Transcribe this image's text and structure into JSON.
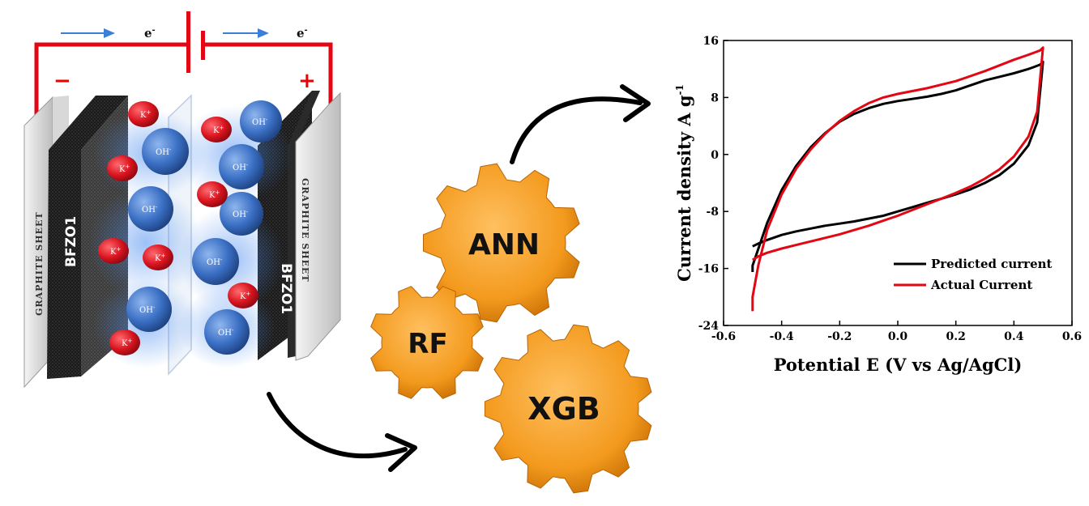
{
  "battery": {
    "electron_left": "e",
    "electron_right": "e",
    "electron_sup": "-",
    "negative_sign": "−",
    "positive_sign": "+",
    "left_sheet": "GRAPHITE SHEET",
    "right_sheet": "GRAPHITE SHEET",
    "left_electrode": "BFZO1",
    "right_electrode": "BFZO1",
    "k_ion": "K",
    "k_sup": "+",
    "oh_ion": "OH",
    "oh_sup": "-"
  },
  "models": {
    "gear_1": "ANN",
    "gear_2": "RF",
    "gear_3": "XGB"
  },
  "colors": {
    "wire": "#e30613",
    "ion_k": "#d9141f",
    "ion_oh": "#3a6fc4",
    "gear": "#f39a1e",
    "electrode": "#1a1a1a",
    "predicted": "#000000",
    "actual": "#e30613"
  },
  "chart_data": {
    "type": "line",
    "xlabel": "Potential E (V vs Ag/AgCl)",
    "ylabel_main": "Current density A g",
    "ylabel_sup": "-1",
    "xlim": [
      -0.6,
      0.6
    ],
    "ylim": [
      -24,
      16
    ],
    "x_ticks": [
      "-0.6",
      "-0.4",
      "-0.2",
      "0.0",
      "0.2",
      "0.4",
      "0.6"
    ],
    "y_ticks": [
      "16",
      "8",
      "0",
      "-8",
      "-16",
      "-24"
    ],
    "legend_position": "bottom-right",
    "series": [
      {
        "name": "Predicted current",
        "color": "#000000",
        "x": [
          -0.5,
          -0.48,
          -0.45,
          -0.4,
          -0.35,
          -0.3,
          -0.25,
          -0.2,
          -0.15,
          -0.1,
          -0.05,
          0.0,
          0.05,
          0.1,
          0.15,
          0.2,
          0.25,
          0.3,
          0.35,
          0.4,
          0.45,
          0.48,
          0.5,
          0.5,
          0.49,
          0.47,
          0.45,
          0.4,
          0.35,
          0.3,
          0.25,
          0.2,
          0.15,
          0.1,
          0.05,
          0.0,
          -0.05,
          -0.1,
          -0.15,
          -0.2,
          -0.25,
          -0.3,
          -0.35,
          -0.4,
          -0.45,
          -0.48,
          -0.5,
          -0.5
        ],
        "y": [
          -12.9,
          -12.5,
          -12.0,
          -11.3,
          -10.8,
          -10.4,
          -10.0,
          -9.7,
          -9.4,
          -9.0,
          -8.6,
          -8.0,
          -7.4,
          -6.8,
          -6.2,
          -5.6,
          -4.9,
          -4.0,
          -2.9,
          -1.3,
          1.3,
          4.5,
          13.0,
          13.0,
          12.6,
          12.3,
          12.0,
          11.4,
          10.9,
          10.4,
          9.7,
          9.0,
          8.5,
          8.1,
          7.8,
          7.5,
          7.1,
          6.5,
          5.7,
          4.6,
          3.0,
          1.0,
          -1.6,
          -5.0,
          -9.6,
          -13.2,
          -15.6,
          -16.5
        ]
      },
      {
        "name": "Actual Current",
        "color": "#e30613",
        "x": [
          -0.5,
          -0.48,
          -0.45,
          -0.4,
          -0.35,
          -0.3,
          -0.25,
          -0.2,
          -0.15,
          -0.1,
          -0.05,
          0.0,
          0.05,
          0.1,
          0.15,
          0.2,
          0.25,
          0.3,
          0.35,
          0.4,
          0.45,
          0.48,
          0.5,
          0.5,
          0.49,
          0.47,
          0.45,
          0.4,
          0.35,
          0.3,
          0.25,
          0.2,
          0.15,
          0.1,
          0.05,
          0.0,
          -0.05,
          -0.1,
          -0.15,
          -0.2,
          -0.25,
          -0.3,
          -0.35,
          -0.4,
          -0.45,
          -0.48,
          -0.5,
          -0.5
        ],
        "y": [
          -14.8,
          -14.3,
          -13.8,
          -13.2,
          -12.7,
          -12.2,
          -11.7,
          -11.2,
          -10.6,
          -10.0,
          -9.3,
          -8.6,
          -7.8,
          -7.0,
          -6.2,
          -5.4,
          -4.5,
          -3.4,
          -2.1,
          -0.3,
          2.5,
          6.0,
          15.0,
          15.0,
          14.6,
          14.3,
          14.0,
          13.3,
          12.5,
          11.7,
          11.0,
          10.3,
          9.8,
          9.3,
          8.9,
          8.5,
          8.0,
          7.2,
          6.1,
          4.7,
          2.9,
          0.7,
          -2.0,
          -5.6,
          -10.6,
          -15.5,
          -20.0,
          -22.0
        ]
      }
    ]
  }
}
